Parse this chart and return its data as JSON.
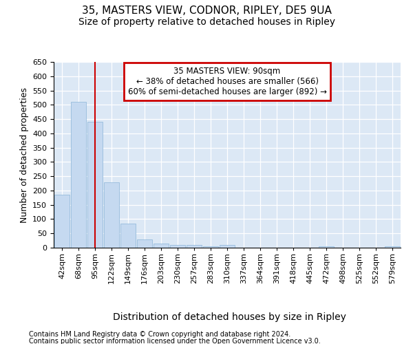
{
  "title": "35, MASTERS VIEW, CODNOR, RIPLEY, DE5 9UA",
  "subtitle": "Size of property relative to detached houses in Ripley",
  "xlabel": "Distribution of detached houses by size in Ripley",
  "ylabel": "Number of detached properties",
  "categories": [
    "42sqm",
    "68sqm",
    "95sqm",
    "122sqm",
    "149sqm",
    "176sqm",
    "203sqm",
    "230sqm",
    "257sqm",
    "283sqm",
    "310sqm",
    "337sqm",
    "364sqm",
    "391sqm",
    "418sqm",
    "445sqm",
    "472sqm",
    "498sqm",
    "525sqm",
    "552sqm",
    "579sqm"
  ],
  "values": [
    185,
    510,
    440,
    228,
    85,
    30,
    15,
    10,
    10,
    5,
    10,
    0,
    0,
    0,
    0,
    0,
    5,
    0,
    0,
    0,
    5
  ],
  "bar_color": "#c5d9f0",
  "bar_edge_color": "#8ab4d8",
  "vline_x_index": 2,
  "vline_color": "#cc0000",
  "ylim_max": 650,
  "annotation_line1": "35 MASTERS VIEW: 90sqm",
  "annotation_line2": "← 38% of detached houses are smaller (566)",
  "annotation_line3": "60% of semi-detached houses are larger (892) →",
  "annotation_box_edgecolor": "#cc0000",
  "background_color": "#dce8f5",
  "footer_line1": "Contains HM Land Registry data © Crown copyright and database right 2024.",
  "footer_line2": "Contains public sector information licensed under the Open Government Licence v3.0.",
  "title_fontsize": 11,
  "subtitle_fontsize": 10,
  "xlabel_fontsize": 10,
  "ylabel_fontsize": 9,
  "tick_fontsize": 8,
  "footer_fontsize": 7
}
